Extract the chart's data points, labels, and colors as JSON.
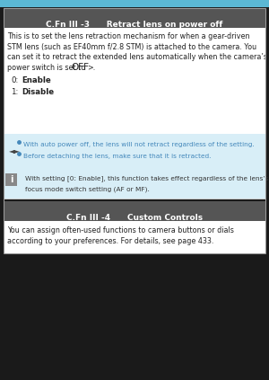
{
  "bg_color": "#1a1a1a",
  "top_bar_color": "#5bb8d4",
  "section1_header_bg": "#555555",
  "section1_header_text": "C.Fn III -3      Retract lens on power off",
  "section1_header_color": "#ffffff",
  "section1_body_bg": "#ffffff",
  "section1_body_lines": [
    "This is to set the lens retraction mechanism for when a gear-driven",
    "STM lens (such as EF40mm f/2.8 STM) is attached to the camera. You",
    "can set it to retract the extended lens automatically when the camera’s",
    "power switch is set to <OFF>."
  ],
  "option0_label": "0:",
  "option0_value": "Enable",
  "option1_label": "1:",
  "option1_value": "Disable",
  "note_bg": "#d8eef7",
  "note_bullet1": "With auto power off, the lens will not retract regardless of the setting.",
  "note_bullet2": "Before detaching the lens, make sure that it is retracted.",
  "info_bg": "#d8eef7",
  "info_text_line1": "With setting [0: Enable], this function takes effect regardless of the lens’s",
  "info_text_line2": "focus mode switch setting (AF or MF).",
  "section2_header_bg": "#555555",
  "section2_header_text": "C.Fn III -4      Custom Controls",
  "section2_header_color": "#ffffff",
  "section2_body_bg": "#ffffff",
  "section2_body_line1": "You can assign often-used functions to camera buttons or dials",
  "section2_body_line2": "according to your preferences. For details, see page 433.",
  "border_color": "#999999",
  "text_color": "#222222",
  "bullet_color": "#4488bb",
  "info_text_color": "#333333"
}
